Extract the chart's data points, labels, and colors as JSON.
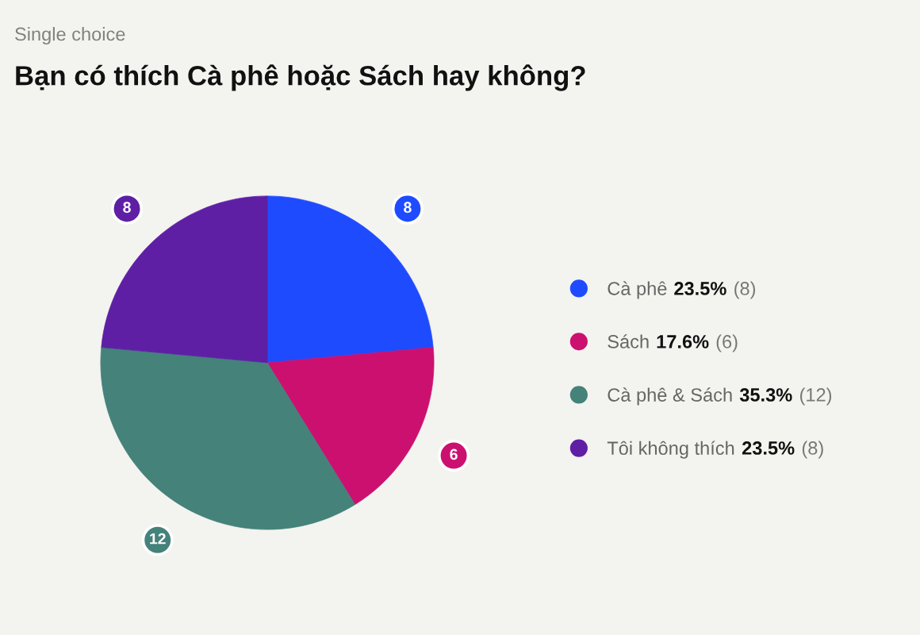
{
  "chart_data": {
    "type": "pie",
    "subtitle": "Single choice",
    "title": "Bạn có thích Cà phê hoặc Sách hay không?",
    "categories": [
      "Cà phê",
      "Sách",
      "Cà phê & Sách",
      "Tôi không thích"
    ],
    "values": [
      8,
      6,
      12,
      8
    ],
    "colors": [
      "#1f4bff",
      "#cc1070",
      "#44827a",
      "#5e1fa5"
    ],
    "value_labels": [
      "8",
      "6",
      "12",
      "8"
    ],
    "annotations": [
      {
        "text": "23.5%",
        "x": "Cà phê"
      },
      {
        "text": "(8)",
        "x": "Cà phê"
      },
      {
        "text": "17.6%",
        "x": "Sách"
      },
      {
        "text": "(6)",
        "x": "Sách"
      },
      {
        "text": "35.3%",
        "x": "Cà phê & Sách"
      },
      {
        "text": "(12)",
        "x": "Cà phê & Sách"
      },
      {
        "text": "23.5%",
        "x": "Tôi không thích"
      },
      {
        "text": "(8)",
        "x": "Tôi không thích"
      }
    ],
    "data_labels": true,
    "legend": "right"
  }
}
